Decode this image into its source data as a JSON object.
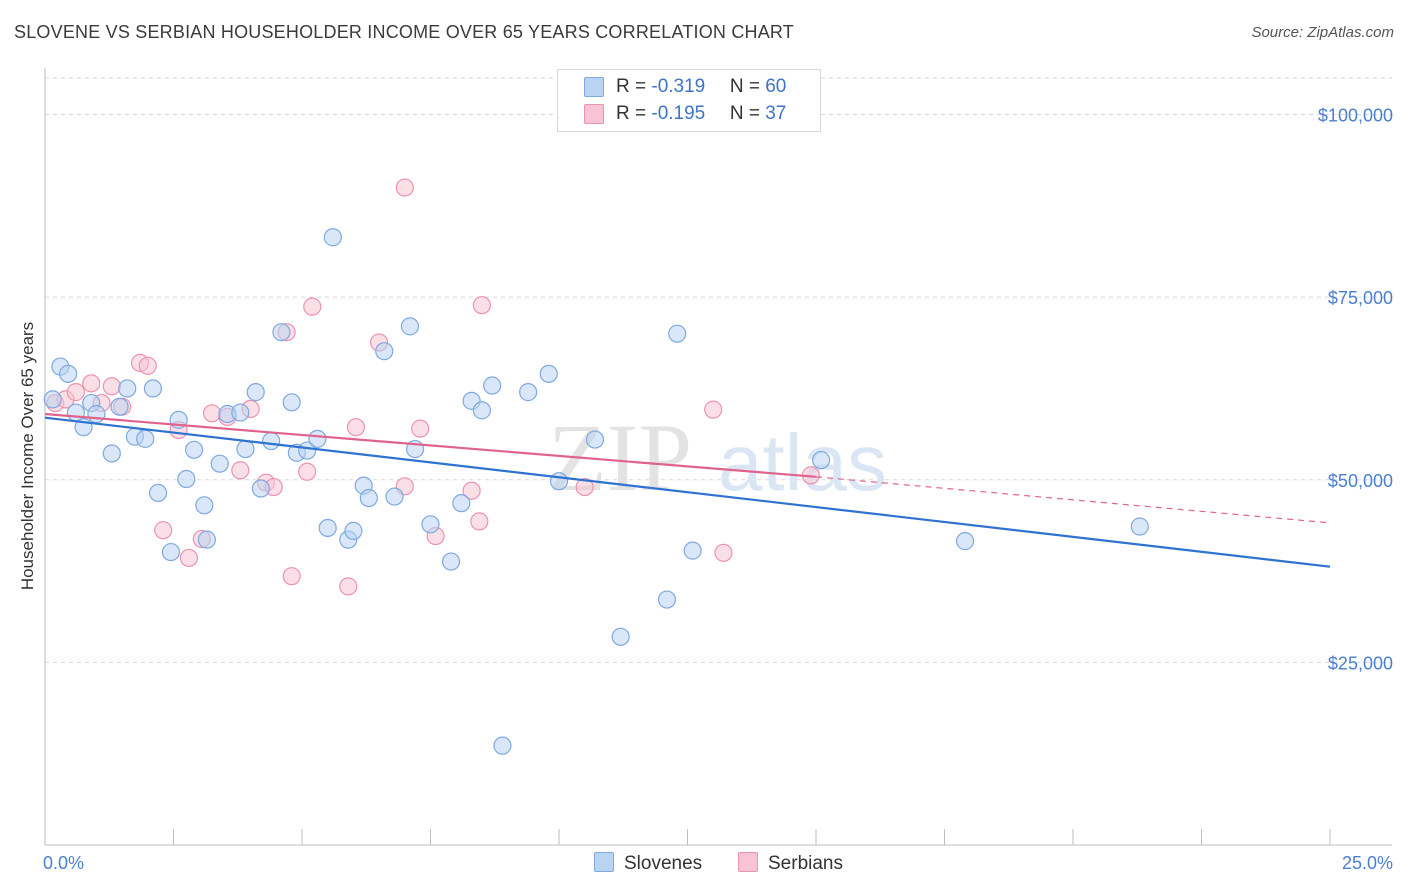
{
  "header": {
    "title": "SLOVENE VS SERBIAN HOUSEHOLDER INCOME OVER 65 YEARS CORRELATION CHART",
    "source": "Source: ZipAtlas.com"
  },
  "watermark": {
    "zip": "ZIP",
    "atlas": "atlas"
  },
  "legend": {
    "slovenes": {
      "r_label": "R = ",
      "r_value": "-0.319",
      "n_label": "N = ",
      "n_value": "60"
    },
    "serbians": {
      "r_label": "R = ",
      "r_value": "-0.195",
      "n_label": "N = ",
      "n_value": "37"
    }
  },
  "bottom_legend": {
    "slovenes": "Slovenes",
    "serbians": "Serbians"
  },
  "colors": {
    "slovenes_fill": "#b9d3f3",
    "slovenes_stroke": "#7fa9e0",
    "slovenes_line": "#2e72d2",
    "serbians_fill": "#f8c4d4",
    "serbians_stroke": "#ec93b0",
    "serbians_line": "#e0638c",
    "tick_text": "#4a7fd1",
    "grid": "#d9d9d9"
  },
  "chart_data": {
    "type": "scatter",
    "title": "SLOVENE VS SERBIAN HOUSEHOLDER INCOME OVER 65 YEARS CORRELATION CHART",
    "xlabel": "",
    "ylabel": "Householder Income Over 65 years",
    "xlim": [
      0,
      25
    ],
    "ylim": [
      0,
      105000
    ],
    "x_tick_labels": [
      "0.0%",
      "25.0%"
    ],
    "y_ticks": [
      25000,
      50000,
      75000,
      100000
    ],
    "y_tick_labels": [
      "$25,000",
      "$50,000",
      "$75,000",
      "$100,000"
    ],
    "grid": true,
    "legend_position": "top-center",
    "series": [
      {
        "name": "Slovenes",
        "points": [
          [
            0.15,
            61000
          ],
          [
            0.3,
            65500
          ],
          [
            0.45,
            64500
          ],
          [
            0.6,
            59200
          ],
          [
            0.75,
            57200
          ],
          [
            0.9,
            60500
          ],
          [
            1.0,
            59000
          ],
          [
            1.3,
            53600
          ],
          [
            1.45,
            60000
          ],
          [
            1.6,
            62500
          ],
          [
            1.75,
            55900
          ],
          [
            1.95,
            55600
          ],
          [
            2.1,
            62500
          ],
          [
            2.2,
            48200
          ],
          [
            2.45,
            40100
          ],
          [
            2.6,
            58200
          ],
          [
            2.75,
            50100
          ],
          [
            2.9,
            54100
          ],
          [
            3.1,
            46500
          ],
          [
            3.15,
            41800
          ],
          [
            3.4,
            52200
          ],
          [
            3.55,
            59000
          ],
          [
            3.8,
            59200
          ],
          [
            3.9,
            54200
          ],
          [
            4.1,
            62000
          ],
          [
            4.2,
            48800
          ],
          [
            4.4,
            55300
          ],
          [
            4.6,
            70200
          ],
          [
            4.8,
            60600
          ],
          [
            4.9,
            53700
          ],
          [
            5.1,
            54000
          ],
          [
            5.3,
            55600
          ],
          [
            5.5,
            43400
          ],
          [
            5.6,
            83200
          ],
          [
            5.9,
            41800
          ],
          [
            6.0,
            43000
          ],
          [
            6.2,
            49200
          ],
          [
            6.3,
            47500
          ],
          [
            6.6,
            67600
          ],
          [
            6.8,
            47700
          ],
          [
            7.1,
            71000
          ],
          [
            7.2,
            54200
          ],
          [
            7.5,
            43900
          ],
          [
            7.9,
            38800
          ],
          [
            8.1,
            46800
          ],
          [
            8.3,
            60800
          ],
          [
            8.5,
            59500
          ],
          [
            8.7,
            62900
          ],
          [
            8.9,
            13600
          ],
          [
            9.4,
            62000
          ],
          [
            9.8,
            64500
          ],
          [
            10.0,
            49800
          ],
          [
            10.7,
            55500
          ],
          [
            11.2,
            28500
          ],
          [
            12.1,
            33600
          ],
          [
            12.3,
            70000
          ],
          [
            12.6,
            40300
          ],
          [
            15.1,
            52700
          ],
          [
            17.9,
            41600
          ],
          [
            21.3,
            43600
          ]
        ],
        "trend": {
          "x0": 0,
          "y0": 58500,
          "x1": 25,
          "y1": 38100
        }
      },
      {
        "name": "Serbians",
        "points": [
          [
            0.2,
            60500
          ],
          [
            0.4,
            61000
          ],
          [
            0.6,
            62000
          ],
          [
            0.9,
            63200
          ],
          [
            1.1,
            60500
          ],
          [
            1.3,
            62800
          ],
          [
            1.5,
            60000
          ],
          [
            1.85,
            66000
          ],
          [
            2.0,
            65600
          ],
          [
            2.3,
            43100
          ],
          [
            2.6,
            56800
          ],
          [
            2.8,
            39300
          ],
          [
            3.05,
            41900
          ],
          [
            3.25,
            59100
          ],
          [
            3.55,
            58600
          ],
          [
            3.8,
            51300
          ],
          [
            4.0,
            59700
          ],
          [
            4.3,
            49600
          ],
          [
            4.45,
            49000
          ],
          [
            4.7,
            70200
          ],
          [
            4.8,
            36800
          ],
          [
            5.1,
            51100
          ],
          [
            5.2,
            73700
          ],
          [
            5.9,
            35400
          ],
          [
            6.05,
            57200
          ],
          [
            6.5,
            68800
          ],
          [
            7.0,
            49100
          ],
          [
            7.3,
            57000
          ],
          [
            7.6,
            42300
          ],
          [
            7.0,
            90000
          ],
          [
            8.3,
            48500
          ],
          [
            8.45,
            44300
          ],
          [
            8.5,
            73900
          ],
          [
            10.5,
            49000
          ],
          [
            13.2,
            40000
          ],
          [
            13.0,
            59600
          ],
          [
            14.9,
            50600
          ]
        ],
        "trend": {
          "x0": 0,
          "y0": 59000,
          "x1": 15,
          "y1": 50400,
          "dash_x1": 25,
          "dash_y1": 44100
        }
      }
    ]
  }
}
